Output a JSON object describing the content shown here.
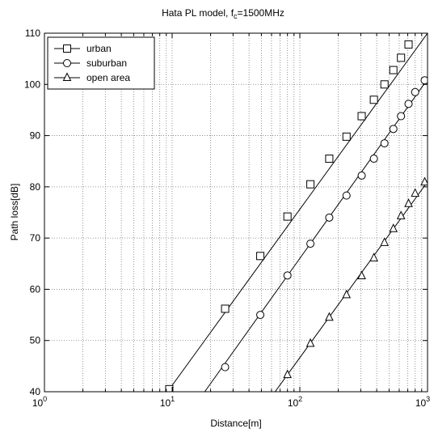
{
  "chart_data": {
    "type": "line",
    "title": "Hata PL model, f",
    "title_sub": "c",
    "title_suffix": "=1500MHz",
    "xlabel": "Distance[m]",
    "ylabel": "Path loss[dB]",
    "xscale": "log",
    "xlim": [
      1,
      1000
    ],
    "ylim": [
      40,
      110
    ],
    "grid": true,
    "legend_position": "top-left",
    "x_ticks": [
      {
        "value": 1,
        "base": "10",
        "exp": "0"
      },
      {
        "value": 10,
        "base": "10",
        "exp": "1"
      },
      {
        "value": 100,
        "base": "10",
        "exp": "2"
      },
      {
        "value": 1000,
        "base": "10",
        "exp": "3"
      }
    ],
    "y_ticks": [
      "40",
      "50",
      "60",
      "70",
      "80",
      "90",
      "100",
      "110"
    ],
    "series": [
      {
        "name": "urban",
        "marker": "square",
        "line": [
          [
            9.2,
            40
          ],
          [
            1000,
            110
          ]
        ],
        "points": [
          [
            9.5,
            40.5
          ],
          [
            26,
            56.2
          ],
          [
            49,
            66.5
          ],
          [
            80,
            74.2
          ],
          [
            121,
            80.5
          ],
          [
            170,
            85.5
          ],
          [
            232,
            89.8
          ],
          [
            305,
            93.8
          ],
          [
            380,
            97
          ],
          [
            460,
            100
          ],
          [
            540,
            102.8
          ],
          [
            620,
            105.2
          ],
          [
            710,
            107.8
          ]
        ]
      },
      {
        "name": "suburban",
        "marker": "circle",
        "line": [
          [
            18,
            40
          ],
          [
            1000,
            101
          ]
        ],
        "points": [
          [
            26,
            44.8
          ],
          [
            49,
            55
          ],
          [
            80,
            62.7
          ],
          [
            121,
            68.9
          ],
          [
            170,
            74
          ],
          [
            232,
            78.3
          ],
          [
            305,
            82.2
          ],
          [
            380,
            85.5
          ],
          [
            460,
            88.5
          ],
          [
            540,
            91.3
          ],
          [
            620,
            93.8
          ],
          [
            710,
            96.2
          ],
          [
            800,
            98.5
          ],
          [
            950,
            100.8
          ]
        ]
      },
      {
        "name": "open area",
        "marker": "triangle",
        "line": [
          [
            64,
            40
          ],
          [
            1000,
            81
          ]
        ],
        "points": [
          [
            80,
            43.3
          ],
          [
            121,
            49.4
          ],
          [
            170,
            54.5
          ],
          [
            232,
            58.9
          ],
          [
            305,
            62.6
          ],
          [
            380,
            66.1
          ],
          [
            460,
            69.1
          ],
          [
            540,
            71.8
          ],
          [
            620,
            74.3
          ],
          [
            710,
            76.7
          ],
          [
            800,
            78.7
          ],
          [
            950,
            80.9
          ]
        ]
      }
    ]
  }
}
